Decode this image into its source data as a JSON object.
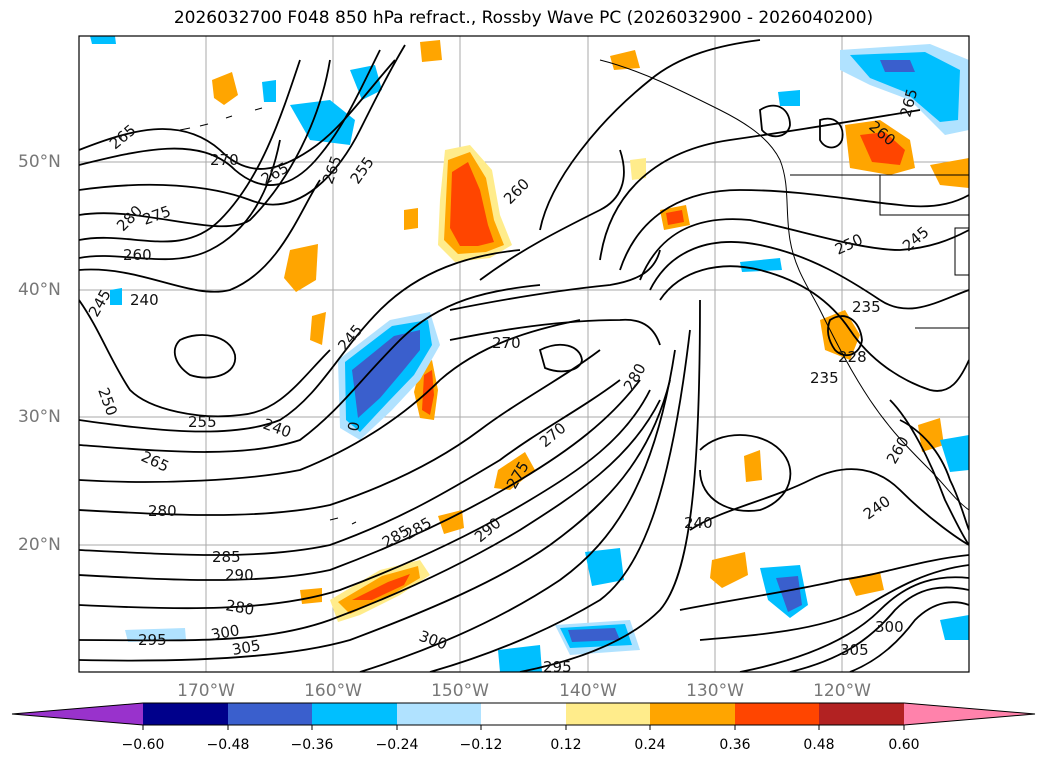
{
  "title": "2026032700 F048 850 hPa refract., Rossby Wave PC (2026032900 - 2026040200)",
  "lat_labels": [
    "50°N",
    "40°N",
    "30°N",
    "20°N"
  ],
  "lon_labels": [
    "170°W",
    "160°W",
    "150°W",
    "140°W",
    "130°W",
    "120°W"
  ],
  "colorbar": {
    "ticks": [
      "−0.60",
      "−0.48",
      "−0.36",
      "−0.24",
      "−0.12",
      "0.12",
      "0.24",
      "0.36",
      "0.48",
      "0.60"
    ],
    "colors": [
      "#9932cc",
      "#00008b",
      "#3a5fcd",
      "#00bfff",
      "#b0e2ff",
      "#ffffff",
      "#ffec8b",
      "#ffa500",
      "#ff4500",
      "#b22222",
      "#ff82ab"
    ]
  },
  "contour_labels": [
    "265",
    "270",
    "265",
    "255",
    "265",
    "260",
    "280",
    "275",
    "260",
    "245",
    "240",
    "250",
    "245",
    "270",
    "255",
    "240",
    "265",
    "280",
    "285",
    "290",
    "280",
    "295",
    "305",
    "300",
    "0",
    "285",
    "290",
    "270",
    "275",
    "280",
    "285",
    "260",
    "245",
    "250",
    "235",
    "228",
    "235",
    "240",
    "240",
    "300",
    "295",
    "265",
    "260",
    "300",
    "305"
  ]
}
